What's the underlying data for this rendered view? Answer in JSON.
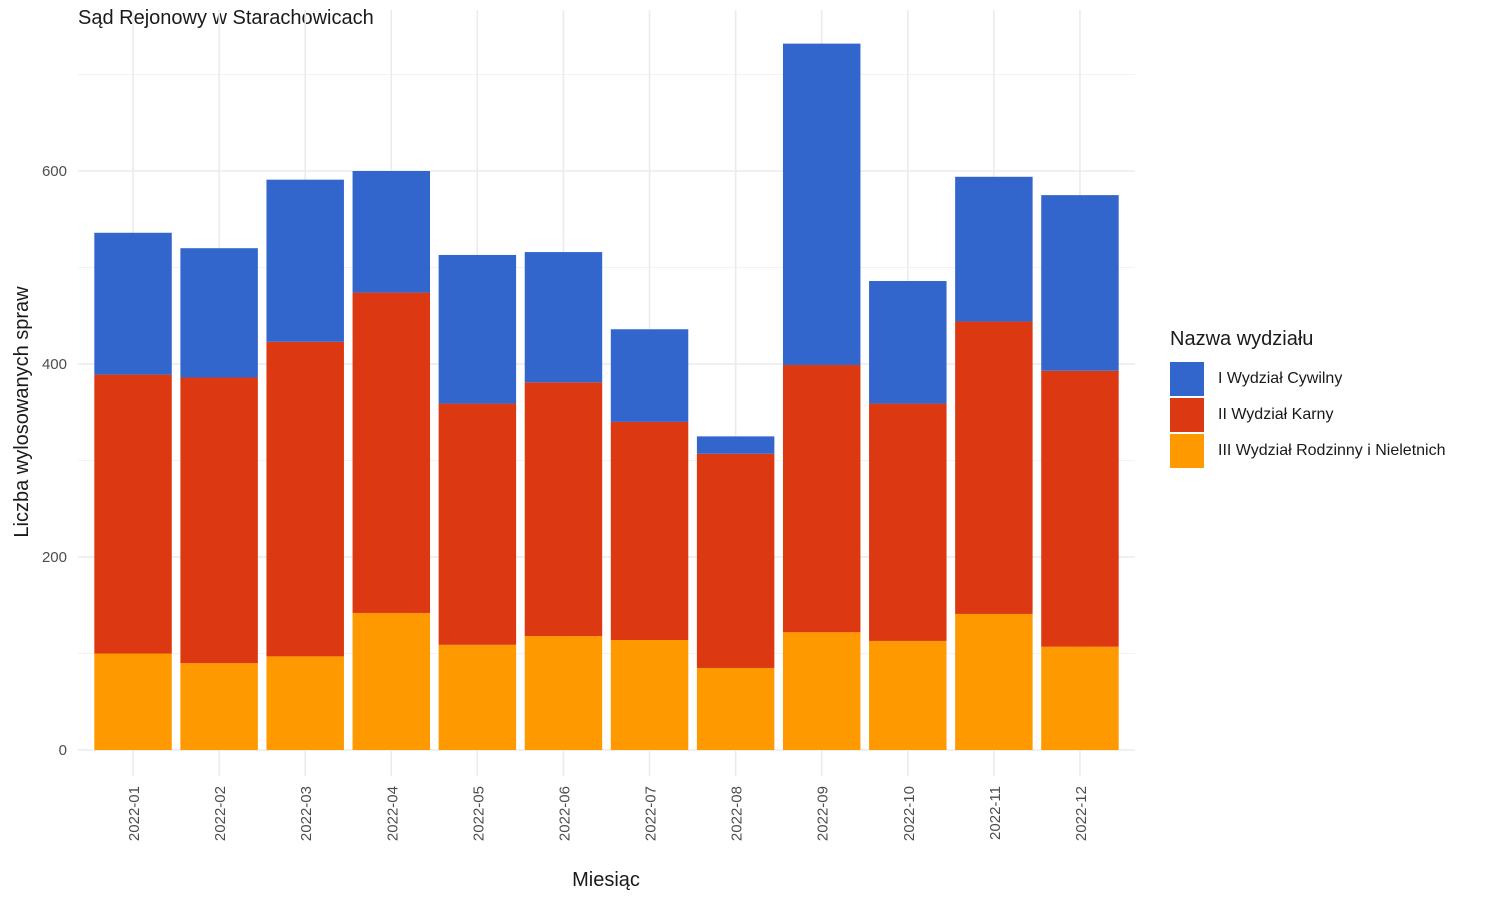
{
  "chart_data": {
    "type": "bar",
    "stacked": true,
    "title": "Sąd Rejonowy w Starachowicach",
    "xlabel": "Miesiąc",
    "ylabel": "Liczba wylosowanych spraw",
    "ylim": [
      0,
      765
    ],
    "yticks": [
      0,
      200,
      400,
      600
    ],
    "grid": true,
    "legend_title": "Nazwa wydziału",
    "legend_position": "right",
    "categories": [
      "2022-01",
      "2022-02",
      "2022-03",
      "2022-04",
      "2022-05",
      "2022-06",
      "2022-07",
      "2022-08",
      "2022-09",
      "2022-10",
      "2022-11",
      "2022-12"
    ],
    "series": [
      {
        "name": "III Wydział Rodzinny i Nieletnich",
        "color": "#FF9900",
        "values": [
          100,
          90,
          97,
          142,
          109,
          118,
          114,
          85,
          122,
          113,
          141,
          107
        ]
      },
      {
        "name": "II Wydział Karny",
        "color": "#DC3912",
        "values": [
          289,
          296,
          326,
          332,
          250,
          263,
          226,
          222,
          277,
          246,
          303,
          286
        ]
      },
      {
        "name": "I Wydział Cywilny",
        "color": "#3366CC",
        "values": [
          147,
          134,
          168,
          126,
          154,
          135,
          96,
          18,
          333,
          127,
          150,
          182
        ]
      }
    ]
  }
}
